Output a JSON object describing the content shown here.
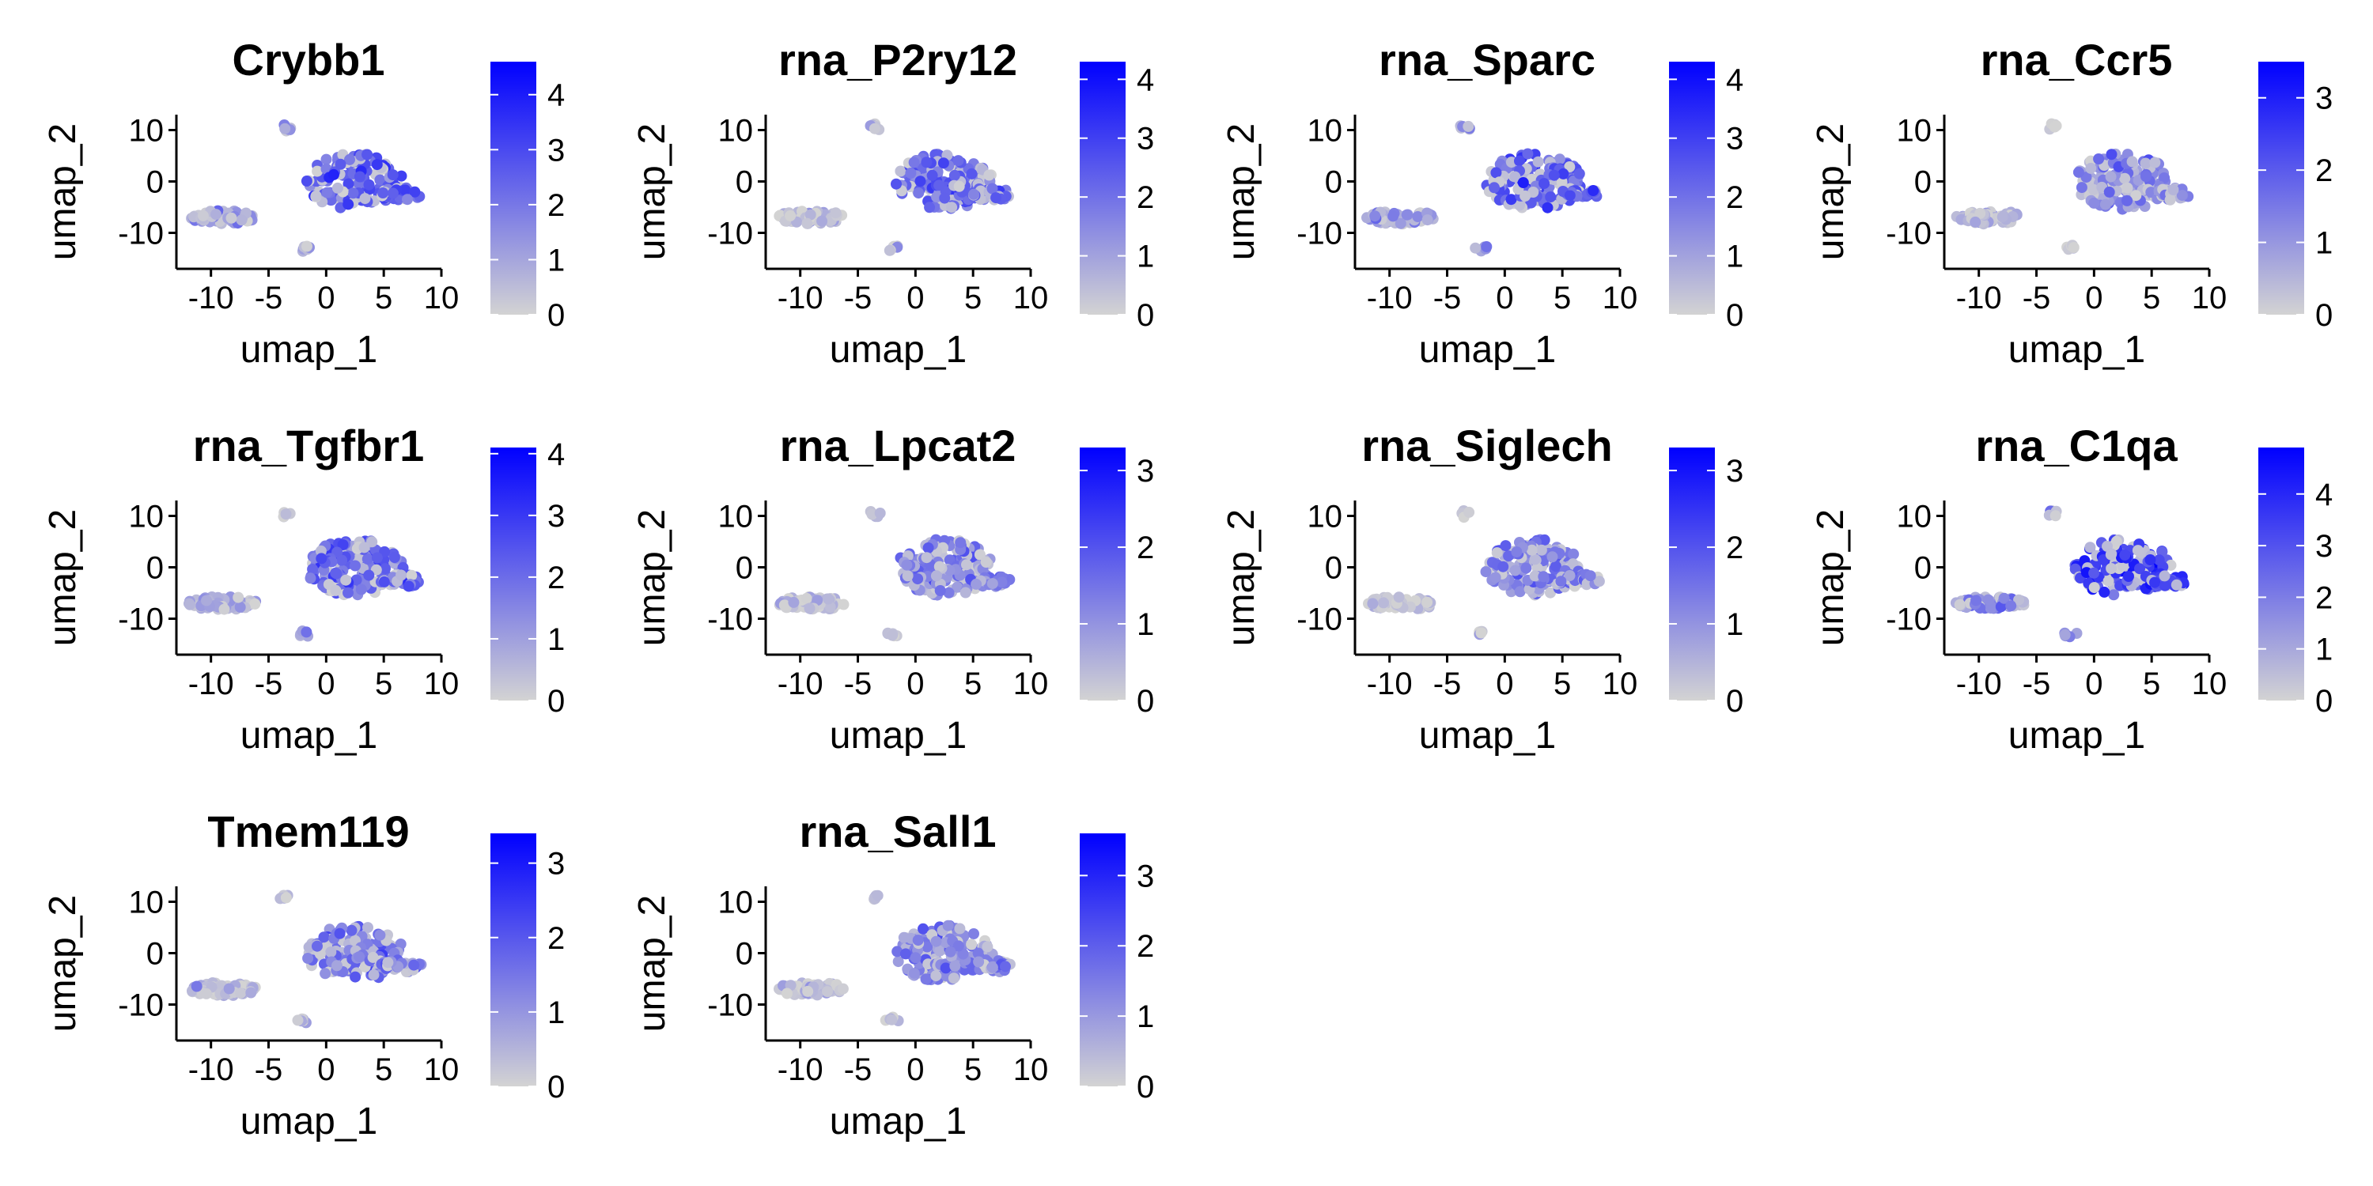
{
  "chart_data": {
    "type": "scatter",
    "xlabel": "umap_1",
    "ylabel": "umap_2",
    "xlim": [
      -13,
      10
    ],
    "ylim": [
      -17,
      13
    ],
    "xticks": [
      -10,
      -5,
      0,
      5,
      10
    ],
    "xtick_labels": [
      "-10",
      "-5",
      "0",
      "5",
      "10"
    ],
    "yticks": [
      -10,
      0,
      10
    ],
    "ytick_labels": [
      "-10",
      "0",
      "10"
    ],
    "color_low": "#d3d3d3",
    "color_high": "#0000ff",
    "panels": [
      {
        "feature": "Crybb1",
        "max": 4.6,
        "cb_ticks": [
          0,
          1,
          2,
          3,
          4
        ],
        "cb_tick_labels": [
          "0",
          "1",
          "2",
          "3",
          "4"
        ],
        "level_main": 0.55,
        "level_side": 0.25
      },
      {
        "feature": "rna_P2ry12",
        "max": 4.3,
        "cb_ticks": [
          0,
          1,
          2,
          3,
          4
        ],
        "cb_tick_labels": [
          "0",
          "1",
          "2",
          "3",
          "4"
        ],
        "level_main": 0.5,
        "level_side": 0.15
      },
      {
        "feature": "rna_Sparc",
        "max": 4.3,
        "cb_ticks": [
          0,
          1,
          2,
          3,
          4
        ],
        "cb_tick_labels": [
          "0",
          "1",
          "2",
          "3",
          "4"
        ],
        "level_main": 0.55,
        "level_side": 0.3
      },
      {
        "feature": "rna_Ccr5",
        "max": 3.5,
        "cb_ticks": [
          0,
          1,
          2,
          3
        ],
        "cb_tick_labels": [
          "0",
          "1",
          "2",
          "3"
        ],
        "level_main": 0.35,
        "level_side": 0.12
      },
      {
        "feature": "rna_Tgfbr1",
        "max": 4.1,
        "cb_ticks": [
          0,
          1,
          2,
          3,
          4
        ],
        "cb_tick_labels": [
          "0",
          "1",
          "2",
          "3",
          "4"
        ],
        "level_main": 0.5,
        "level_side": 0.2
      },
      {
        "feature": "rna_Lpcat2",
        "max": 3.3,
        "cb_ticks": [
          0,
          1,
          2,
          3
        ],
        "cb_tick_labels": [
          "0",
          "1",
          "2",
          "3"
        ],
        "level_main": 0.4,
        "level_side": 0.1
      },
      {
        "feature": "rna_Siglech",
        "max": 3.3,
        "cb_ticks": [
          0,
          1,
          2,
          3
        ],
        "cb_tick_labels": [
          "0",
          "1",
          "2",
          "3"
        ],
        "level_main": 0.4,
        "level_side": 0.08
      },
      {
        "feature": "rna_C1qa",
        "max": 4.9,
        "cb_ticks": [
          0,
          1,
          2,
          3,
          4
        ],
        "cb_tick_labels": [
          "0",
          "1",
          "2",
          "3",
          "4"
        ],
        "level_main": 0.72,
        "level_side": 0.3
      },
      {
        "feature": "Tmem119",
        "max": 3.4,
        "cb_ticks": [
          0,
          1,
          2,
          3
        ],
        "cb_tick_labels": [
          "0",
          "1",
          "2",
          "3"
        ],
        "level_main": 0.45,
        "level_side": 0.12
      },
      {
        "feature": "rna_Sall1",
        "max": 3.6,
        "cb_ticks": [
          0,
          1,
          2,
          3
        ],
        "cb_tick_labels": [
          "0",
          "1",
          "2",
          "3"
        ],
        "level_main": 0.4,
        "level_side": 0.1
      }
    ]
  }
}
